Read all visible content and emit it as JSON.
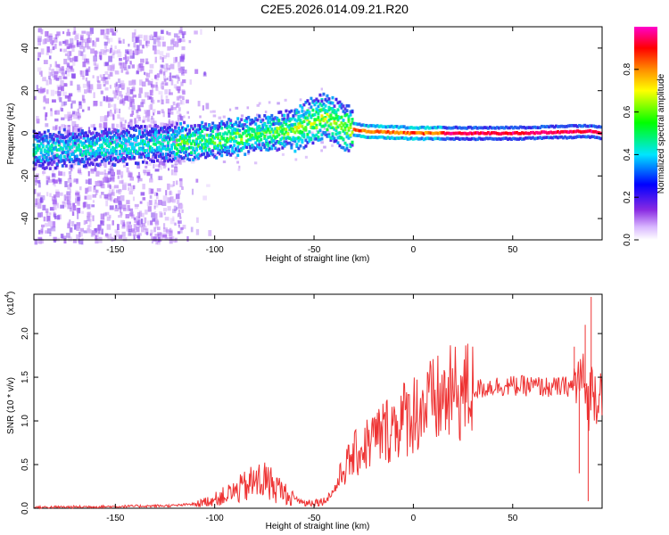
{
  "figure_title": "C2E5.2026.014.09.21.R20",
  "chart_data": [
    {
      "type": "heatmap",
      "title": "C2E5.2026.014.09.21.R20",
      "xlabel": "Height of straight line (km)",
      "ylabel": "Frequency (Hz)",
      "xlim": [
        -191,
        95
      ],
      "ylim": [
        -50,
        50
      ],
      "xticks": [
        -150,
        -100,
        -50,
        0,
        50
      ],
      "yticks": [
        -40,
        -20,
        0,
        20,
        40
      ],
      "colorbar": {
        "label": "Normalized spectral amplitude",
        "range": [
          0,
          1
        ],
        "ticks": [
          "0.0",
          "0.2",
          "0.4",
          "0.6",
          "0.8"
        ],
        "colors": [
          "#ffffff",
          "#8a2be2",
          "#0000ff",
          "#00e5ff",
          "#00ff00",
          "#ffff00",
          "#ff8c00",
          "#ff0000",
          "#ff00cc"
        ]
      },
      "ridge": {
        "description_points_x": [
          -191,
          -150,
          -100,
          -60,
          -45,
          -35,
          -25,
          0,
          50,
          90,
          95
        ],
        "description_points_y": [
          -8,
          -6,
          -3,
          2,
          8,
          3,
          1,
          0,
          0,
          1,
          0
        ]
      }
    },
    {
      "type": "line",
      "xlabel": "Height of straight line (km)",
      "ylabel": "SNR (10 * v/v)",
      "scale_label": "(x10",
      "scale_exp": "4",
      "series_color": "#ee3333",
      "xlim": [
        -191,
        95
      ],
      "ylim": [
        0,
        2.45
      ],
      "xticks": [
        -150,
        -100,
        -50,
        0,
        50
      ],
      "yticks": [
        "0.0",
        "0.5",
        "1.0",
        "1.5",
        "2.0"
      ],
      "series": [
        {
          "name": "SNR",
          "x": [
            -191,
            -150,
            -120,
            -110,
            -100,
            -90,
            -80,
            -75,
            -70,
            -60,
            -55,
            -45,
            -40,
            -35,
            -30,
            -20,
            -10,
            0,
            10,
            20,
            30,
            40,
            50,
            60,
            70,
            80,
            85,
            88,
            90,
            92,
            95
          ],
          "values": [
            0.01,
            0.02,
            0.03,
            0.05,
            0.12,
            0.22,
            0.35,
            0.38,
            0.3,
            0.12,
            0.06,
            0.08,
            0.2,
            0.45,
            0.6,
            0.8,
            0.95,
            1.1,
            1.2,
            1.3,
            1.35,
            1.4,
            1.4,
            1.4,
            1.38,
            1.4,
            1.5,
            1.2,
            1.4,
            1.3,
            1.4
          ]
        }
      ],
      "spikes": [
        {
          "x": 89.5,
          "value": 2.42
        },
        {
          "x": 88.0,
          "value": 0.08
        },
        {
          "x": 86.5,
          "value": 2.1
        },
        {
          "x": 83.5,
          "value": 0.4
        },
        {
          "x": 81,
          "value": 1.85
        }
      ]
    }
  ]
}
